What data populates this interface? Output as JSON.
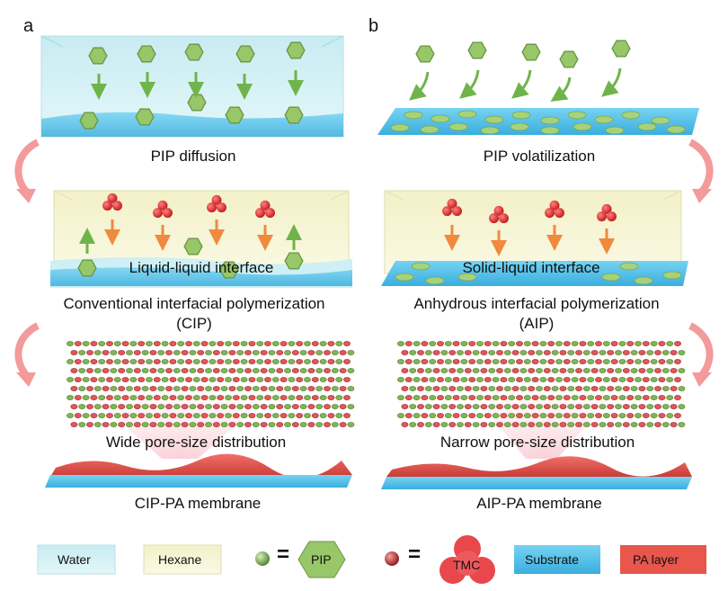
{
  "panels": {
    "a": {
      "letter": "a",
      "step1": "PIP diffusion",
      "step2_inner": "Liquid-liquid interface",
      "step2_line1": "Conventional interfacial polymerization",
      "step2_line2": "(CIP)",
      "step3_inner": "Wide pore-size distribution",
      "step3": "CIP-PA membrane"
    },
    "b": {
      "letter": "b",
      "step1": "PIP volatilization",
      "step2_inner": "Solid-liquid interface",
      "step2_line1": "Anhydrous interfacial polymerization",
      "step2_line2": "(AIP)",
      "step3_inner": "Narrow pore-size distribution",
      "step3": "AIP-PA membrane"
    }
  },
  "legend": {
    "water": "Water",
    "hexane": "Hexane",
    "equals1": "=",
    "pip": "PIP",
    "equals2": "=",
    "tmc": "TMC",
    "substrate": "Substrate",
    "pa_layer": "PA layer"
  },
  "colors": {
    "water": "#cdeef3",
    "hexane": "#f6f4cf",
    "pip": "#9ccb6c",
    "tmc": "#e8474c",
    "substrate": "#5bc3ea",
    "pa_layer": "#e8564c",
    "flow_arrow": "#f08d8d"
  }
}
